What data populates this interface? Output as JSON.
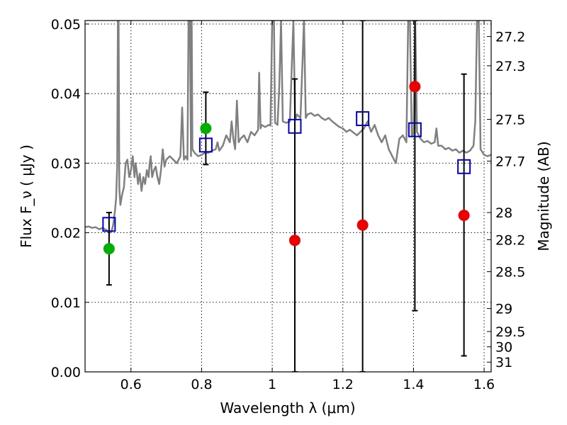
{
  "chart_data": {
    "type": "scatter",
    "xlabel": "Wavelength λ (μm)",
    "ylabel": "Flux F_ν ( μJy )",
    "y2label": "Magnitude (AB)",
    "xlim": [
      0.47,
      1.62
    ],
    "ylim": [
      0.0,
      0.0505
    ],
    "grid": true,
    "x_ticks": [
      {
        "value": 0.6,
        "label": "0.6"
      },
      {
        "value": 0.8,
        "label": "0.8"
      },
      {
        "value": 1.0,
        "label": "1"
      },
      {
        "value": 1.2,
        "label": "1.2"
      },
      {
        "value": 1.4,
        "label": "1.4"
      },
      {
        "value": 1.6,
        "label": "1.6"
      }
    ],
    "y_ticks": [
      {
        "value": 0.0,
        "label": "0.00"
      },
      {
        "value": 0.01,
        "label": "0.01"
      },
      {
        "value": 0.02,
        "label": "0.02"
      },
      {
        "value": 0.03,
        "label": "0.03"
      },
      {
        "value": 0.04,
        "label": "0.04"
      },
      {
        "value": 0.05,
        "label": "0.05"
      }
    ],
    "y2_ticks": [
      {
        "flux": 0.0482,
        "label": "27.2"
      },
      {
        "flux": 0.044,
        "label": "27.3"
      },
      {
        "flux": 0.0363,
        "label": "27.5"
      },
      {
        "flux": 0.0303,
        "label": "27.7"
      },
      {
        "flux": 0.0229,
        "label": "28"
      },
      {
        "flux": 0.019,
        "label": "28.2"
      },
      {
        "flux": 0.0144,
        "label": "28.5"
      },
      {
        "flux": 0.0091,
        "label": "29"
      },
      {
        "flux": 0.0058,
        "label": "29.5"
      },
      {
        "flux": 0.0036,
        "label": "30"
      },
      {
        "flux": 0.0014,
        "label": "31"
      }
    ],
    "model_spectrum": {
      "color": "#808080",
      "points": [
        [
          0.47,
          0.0208
        ],
        [
          0.48,
          0.0209
        ],
        [
          0.49,
          0.0207
        ],
        [
          0.5,
          0.0208
        ],
        [
          0.51,
          0.0205
        ],
        [
          0.52,
          0.0207
        ],
        [
          0.53,
          0.0204
        ],
        [
          0.54,
          0.02
        ],
        [
          0.545,
          0.0202
        ],
        [
          0.55,
          0.0212
        ],
        [
          0.555,
          0.0233
        ],
        [
          0.558,
          0.025
        ],
        [
          0.561,
          0.0295
        ],
        [
          0.563,
          0.0505
        ],
        [
          0.565,
          0.0505
        ],
        [
          0.567,
          0.0265
        ],
        [
          0.57,
          0.024
        ],
        [
          0.575,
          0.0255
        ],
        [
          0.58,
          0.0265
        ],
        [
          0.585,
          0.03
        ],
        [
          0.59,
          0.0305
        ],
        [
          0.595,
          0.028
        ],
        [
          0.6,
          0.029
        ],
        [
          0.605,
          0.031
        ],
        [
          0.61,
          0.028
        ],
        [
          0.613,
          0.03
        ],
        [
          0.616,
          0.029
        ],
        [
          0.62,
          0.027
        ],
        [
          0.625,
          0.0285
        ],
        [
          0.63,
          0.026
        ],
        [
          0.635,
          0.028
        ],
        [
          0.64,
          0.027
        ],
        [
          0.645,
          0.029
        ],
        [
          0.65,
          0.028
        ],
        [
          0.653,
          0.03
        ],
        [
          0.656,
          0.031
        ],
        [
          0.66,
          0.028
        ],
        [
          0.665,
          0.029
        ],
        [
          0.67,
          0.0295
        ],
        [
          0.675,
          0.028
        ],
        [
          0.68,
          0.027
        ],
        [
          0.685,
          0.029
        ],
        [
          0.69,
          0.032
        ],
        [
          0.695,
          0.0295
        ],
        [
          0.7,
          0.0305
        ],
        [
          0.71,
          0.031
        ],
        [
          0.72,
          0.0305
        ],
        [
          0.73,
          0.03
        ],
        [
          0.74,
          0.031
        ],
        [
          0.745,
          0.038
        ],
        [
          0.75,
          0.0305
        ],
        [
          0.755,
          0.031
        ],
        [
          0.76,
          0.0305
        ],
        [
          0.763,
          0.0505
        ],
        [
          0.767,
          0.0505
        ],
        [
          0.77,
          0.031
        ],
        [
          0.772,
          0.0505
        ],
        [
          0.774,
          0.032
        ],
        [
          0.78,
          0.0315
        ],
        [
          0.79,
          0.031
        ],
        [
          0.8,
          0.0312
        ],
        [
          0.81,
          0.0315
        ],
        [
          0.82,
          0.0315
        ],
        [
          0.83,
          0.0318
        ],
        [
          0.84,
          0.032
        ],
        [
          0.845,
          0.033
        ],
        [
          0.85,
          0.0318
        ],
        [
          0.86,
          0.0325
        ],
        [
          0.87,
          0.034
        ],
        [
          0.88,
          0.033
        ],
        [
          0.885,
          0.036
        ],
        [
          0.89,
          0.0335
        ],
        [
          0.895,
          0.032
        ],
        [
          0.9,
          0.039
        ],
        [
          0.905,
          0.033
        ],
        [
          0.91,
          0.0335
        ],
        [
          0.92,
          0.034
        ],
        [
          0.93,
          0.033
        ],
        [
          0.94,
          0.0345
        ],
        [
          0.95,
          0.034
        ],
        [
          0.96,
          0.0348
        ],
        [
          0.963,
          0.043
        ],
        [
          0.967,
          0.035
        ],
        [
          0.97,
          0.0355
        ],
        [
          0.98,
          0.0352
        ],
        [
          0.99,
          0.0355
        ],
        [
          0.995,
          0.0354
        ],
        [
          1.0,
          0.0505
        ],
        [
          1.005,
          0.0505
        ],
        [
          1.008,
          0.0358
        ],
        [
          1.015,
          0.0355
        ],
        [
          1.02,
          0.041
        ],
        [
          1.025,
          0.0505
        ],
        [
          1.03,
          0.036
        ],
        [
          1.04,
          0.0358
        ],
        [
          1.05,
          0.036
        ],
        [
          1.06,
          0.0505
        ],
        [
          1.065,
          0.0362
        ],
        [
          1.07,
          0.037
        ],
        [
          1.08,
          0.0365
        ],
        [
          1.09,
          0.0505
        ],
        [
          1.095,
          0.0365
        ],
        [
          1.1,
          0.037
        ],
        [
          1.11,
          0.0372
        ],
        [
          1.12,
          0.0368
        ],
        [
          1.13,
          0.037
        ],
        [
          1.14,
          0.0365
        ],
        [
          1.15,
          0.0362
        ],
        [
          1.16,
          0.0365
        ],
        [
          1.17,
          0.036
        ],
        [
          1.18,
          0.0356
        ],
        [
          1.19,
          0.0352
        ],
        [
          1.2,
          0.035
        ],
        [
          1.21,
          0.0345
        ],
        [
          1.22,
          0.0348
        ],
        [
          1.23,
          0.0344
        ],
        [
          1.24,
          0.034
        ],
        [
          1.25,
          0.0345
        ],
        [
          1.26,
          0.035
        ],
        [
          1.27,
          0.036
        ],
        [
          1.28,
          0.0345
        ],
        [
          1.29,
          0.0355
        ],
        [
          1.3,
          0.034
        ],
        [
          1.31,
          0.033
        ],
        [
          1.32,
          0.034
        ],
        [
          1.33,
          0.032
        ],
        [
          1.34,
          0.031
        ],
        [
          1.35,
          0.03
        ],
        [
          1.36,
          0.0335
        ],
        [
          1.37,
          0.034
        ],
        [
          1.38,
          0.033
        ],
        [
          1.385,
          0.0505
        ],
        [
          1.39,
          0.0505
        ],
        [
          1.395,
          0.034
        ],
        [
          1.4,
          0.0342
        ],
        [
          1.405,
          0.0505
        ],
        [
          1.41,
          0.0345
        ],
        [
          1.42,
          0.0335
        ],
        [
          1.43,
          0.033
        ],
        [
          1.44,
          0.0332
        ],
        [
          1.45,
          0.0328
        ],
        [
          1.46,
          0.033
        ],
        [
          1.465,
          0.035
        ],
        [
          1.47,
          0.0325
        ],
        [
          1.48,
          0.0325
        ],
        [
          1.49,
          0.032
        ],
        [
          1.5,
          0.0322
        ],
        [
          1.51,
          0.0318
        ],
        [
          1.52,
          0.032
        ],
        [
          1.53,
          0.0315
        ],
        [
          1.54,
          0.0318
        ],
        [
          1.55,
          0.0315
        ],
        [
          1.56,
          0.0318
        ],
        [
          1.57,
          0.0325
        ],
        [
          1.575,
          0.036
        ],
        [
          1.58,
          0.0505
        ],
        [
          1.585,
          0.0505
        ],
        [
          1.59,
          0.032
        ],
        [
          1.6,
          0.0312
        ],
        [
          1.61,
          0.031
        ],
        [
          1.62,
          0.0312
        ]
      ]
    },
    "series": [
      {
        "marker": "square",
        "color": "#0000cc",
        "points": [
          {
            "x": 0.538,
            "y": 0.0212
          },
          {
            "x": 0.812,
            "y": 0.0326
          },
          {
            "x": 1.064,
            "y": 0.0353
          },
          {
            "x": 1.256,
            "y": 0.0364
          },
          {
            "x": 1.404,
            "y": 0.0348
          },
          {
            "x": 1.543,
            "y": 0.0295
          }
        ]
      },
      {
        "marker": "circle",
        "color": "#00b000",
        "points": [
          {
            "x": 0.538,
            "y": 0.0177,
            "err_low": 0.0125,
            "err_high": 0.0229
          },
          {
            "x": 0.812,
            "y": 0.035,
            "err_low": 0.0298,
            "err_high": 0.0402
          }
        ]
      },
      {
        "marker": "circle",
        "color": "#ee0000",
        "points": [
          {
            "x": 1.064,
            "y": 0.0189,
            "err_low": 0.0,
            "err_high": 0.0421
          },
          {
            "x": 1.256,
            "y": 0.0211,
            "err_low": 0.0,
            "err_high": 0.0505
          },
          {
            "x": 1.404,
            "y": 0.041,
            "err_low": 0.0088,
            "err_high": 0.0505
          },
          {
            "x": 1.543,
            "y": 0.0225,
            "err_low": 0.0023,
            "err_high": 0.0428
          }
        ]
      }
    ]
  }
}
